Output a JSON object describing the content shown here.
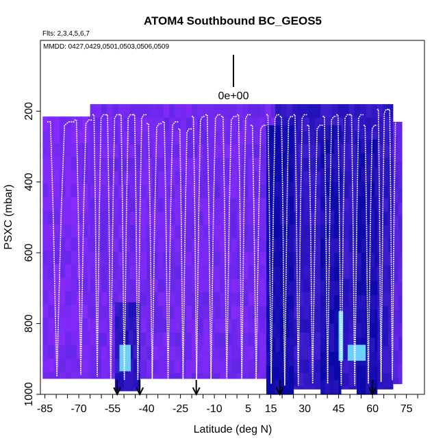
{
  "chart_data": {
    "type": "heatmap",
    "title": "ATOM4 Southbound BC_GEOS5",
    "flights_note": "Flts: 2,3,4,5,6,7",
    "dates_note": "MMDD: 0427,0429,0501,0503,0506,0509",
    "xlabel": "Latitude (deg N)",
    "ylabel": "PSXC (mbar)",
    "xlim": [
      -87,
      83
    ],
    "ylim": [
      1000,
      0
    ],
    "x_ticks": [
      -85,
      -70,
      -55,
      -40,
      -25,
      -10,
      5,
      15,
      30,
      45,
      60,
      75
    ],
    "y_ticks": [
      200,
      400,
      600,
      800,
      1000
    ],
    "scale_label": "0e+00",
    "colors": {
      "light": "#8b2cff",
      "mid": "#4a22d6",
      "dark": "#0a08a8",
      "hot": "#70dcff",
      "flight_track": "#ffffff"
    },
    "arrow_latitudes": [
      -53,
      -43,
      -18,
      19,
      60
    ],
    "curtain_segments": [
      {
        "lat_start": -86,
        "lat_end": -65,
        "top": 215,
        "bottom": 955,
        "level": 0.15
      },
      {
        "lat_start": -65,
        "lat_end": 17,
        "top": 180,
        "bottom": 955,
        "level": 0.2
      },
      {
        "lat_start": 17,
        "lat_end": 69,
        "top": 180,
        "bottom": 985,
        "level": 0.7
      },
      {
        "lat_start": 69,
        "lat_end": 73,
        "top": 230,
        "bottom": 970,
        "level": 0.4
      }
    ],
    "dark_patches": [
      {
        "lat_start": 13,
        "lat_end": 25,
        "p_top": 240,
        "p_bottom": 1000,
        "level": 0.95
      },
      {
        "lat_start": 37,
        "lat_end": 46,
        "p_top": 240,
        "p_bottom": 1000,
        "level": 0.9
      },
      {
        "lat_start": 53,
        "lat_end": 62,
        "p_top": 280,
        "p_bottom": 1000,
        "level": 0.9
      },
      {
        "lat_start": -54,
        "lat_end": -43,
        "p_top": 740,
        "p_bottom": 990,
        "level": 0.75
      }
    ],
    "hot_patches": [
      {
        "lat_start": 45,
        "lat_end": 47,
        "p_top": 765,
        "p_bottom": 905,
        "level": 1.0
      },
      {
        "lat_start": 49,
        "lat_end": 57,
        "p_top": 860,
        "p_bottom": 905,
        "level": 0.95
      },
      {
        "lat_start": -52,
        "lat_end": -47,
        "p_top": 860,
        "p_bottom": 935,
        "level": 0.95
      }
    ],
    "profiles": [
      {
        "lat_start": -84,
        "lat_end": -72,
        "p_top": 230,
        "p_bottom": 950
      },
      {
        "lat_start": -72,
        "lat_end": -64,
        "p_top": 225,
        "p_bottom": 945
      },
      {
        "lat_start": -64,
        "lat_end": -58,
        "p_top": 210,
        "p_bottom": 950
      },
      {
        "lat_start": -58,
        "lat_end": -52,
        "p_top": 210,
        "p_bottom": 960
      },
      {
        "lat_start": -52,
        "lat_end": -46,
        "p_top": 210,
        "p_bottom": 960
      },
      {
        "lat_start": -46,
        "lat_end": -40,
        "p_top": 210,
        "p_bottom": 960
      },
      {
        "lat_start": -40,
        "lat_end": -33,
        "p_top": 235,
        "p_bottom": 960
      },
      {
        "lat_start": -33,
        "lat_end": -26,
        "p_top": 230,
        "p_bottom": 960
      },
      {
        "lat_start": -26,
        "lat_end": -20,
        "p_top": 250,
        "p_bottom": 960
      },
      {
        "lat_start": -20,
        "lat_end": -14,
        "p_top": 215,
        "p_bottom": 960
      },
      {
        "lat_start": -14,
        "lat_end": -7,
        "p_top": 210,
        "p_bottom": 960
      },
      {
        "lat_start": -7,
        "lat_end": 0,
        "p_top": 215,
        "p_bottom": 955
      },
      {
        "lat_start": 0,
        "lat_end": 6,
        "p_top": 210,
        "p_bottom": 960
      },
      {
        "lat_start": 6,
        "lat_end": 13,
        "p_top": 240,
        "p_bottom": 960
      },
      {
        "lat_start": 13,
        "lat_end": 19,
        "p_top": 210,
        "p_bottom": 970
      },
      {
        "lat_start": 19,
        "lat_end": 25,
        "p_top": 215,
        "p_bottom": 975
      },
      {
        "lat_start": 25,
        "lat_end": 31,
        "p_top": 210,
        "p_bottom": 975
      },
      {
        "lat_start": 31,
        "lat_end": 38,
        "p_top": 240,
        "p_bottom": 970
      },
      {
        "lat_start": 38,
        "lat_end": 44,
        "p_top": 215,
        "p_bottom": 970
      },
      {
        "lat_start": 44,
        "lat_end": 50,
        "p_top": 210,
        "p_bottom": 975
      },
      {
        "lat_start": 50,
        "lat_end": 56,
        "p_top": 210,
        "p_bottom": 975
      },
      {
        "lat_start": 56,
        "lat_end": 62,
        "p_top": 240,
        "p_bottom": 970
      },
      {
        "lat_start": 62,
        "lat_end": 67,
        "p_top": 195,
        "p_bottom": 965
      },
      {
        "lat_start": 67,
        "lat_end": 72,
        "p_top": 195,
        "p_bottom": 960
      }
    ]
  }
}
